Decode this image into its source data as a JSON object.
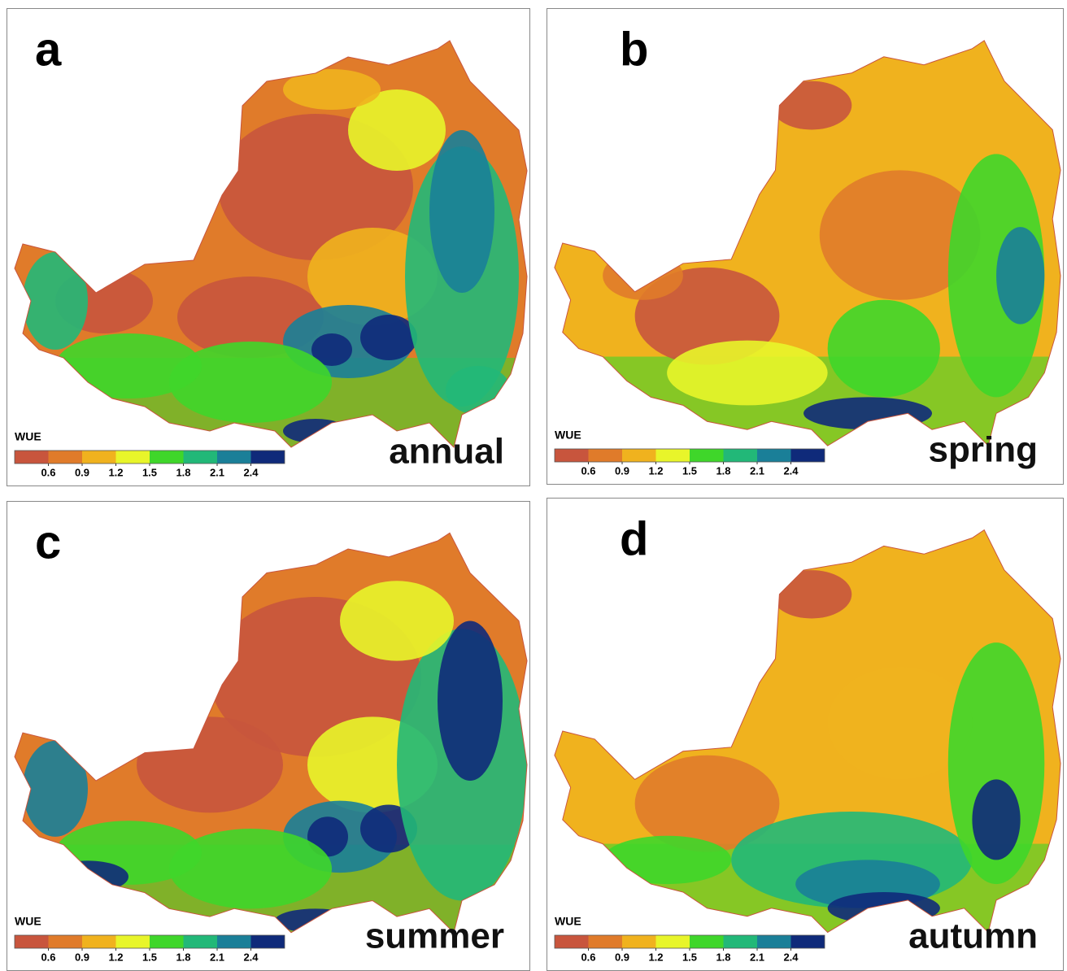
{
  "panels": [
    {
      "letter": "a",
      "label": "annual",
      "legend": {
        "title": "WUE",
        "ticks": [
          0.6,
          0.9,
          1.2,
          1.5,
          1.8,
          2.1,
          2.4
        ]
      }
    },
    {
      "letter": "b",
      "label": "spring",
      "legend": {
        "title": "WUE",
        "ticks": [
          0.6,
          0.9,
          1.2,
          1.5,
          1.8,
          2.1,
          2.4
        ]
      }
    },
    {
      "letter": "c",
      "label": "summer",
      "legend": {
        "title": "WUE",
        "ticks": [
          0.6,
          0.9,
          1.2,
          1.5,
          1.8,
          2.1,
          2.4
        ]
      }
    },
    {
      "letter": "d",
      "label": "autumn",
      "legend": {
        "title": "WUE",
        "ticks": [
          0.6,
          0.9,
          1.2,
          1.5,
          1.8,
          2.1,
          2.4
        ]
      }
    }
  ],
  "legend_colors": [
    "#c8553d",
    "#e07b2a",
    "#f0b21e",
    "#e8f52a",
    "#3fd62a",
    "#22b878",
    "#1a7f98",
    "#0f2a7a"
  ]
}
